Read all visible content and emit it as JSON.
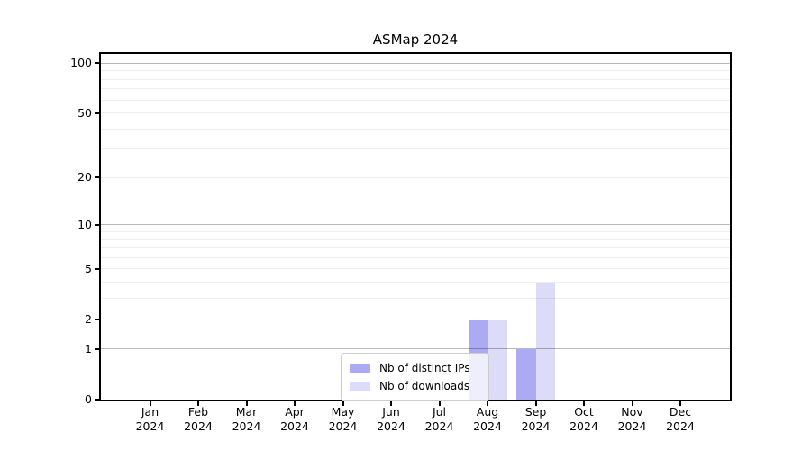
{
  "chart_data": {
    "type": "bar",
    "title": "ASMap 2024",
    "categories": [
      "Jan\n2024",
      "Feb\n2024",
      "Mar\n2024",
      "Apr\n2024",
      "May\n2024",
      "Jun\n2024",
      "Jul\n2024",
      "Aug\n2024",
      "Sep\n2024",
      "Oct\n2024",
      "Nov\n2024",
      "Dec\n2024"
    ],
    "series": [
      {
        "name": "Nb of distinct IPs",
        "color": "#abaaf3",
        "values": [
          0,
          0,
          0,
          0,
          0,
          0,
          0,
          2,
          1,
          0,
          0,
          0
        ]
      },
      {
        "name": "Nb of downloads",
        "color": "#dcdcf8",
        "values": [
          0,
          0,
          0,
          0,
          0,
          0,
          0,
          2,
          4,
          0,
          0,
          0
        ]
      }
    ],
    "xlabel": "",
    "ylabel": "",
    "y_ticks": [
      100,
      50,
      20,
      10,
      5,
      2,
      1,
      0
    ],
    "y_scale": "log10(1+x)",
    "y_max": 113,
    "major_gridlines": [
      1,
      10,
      100
    ],
    "minor_gridlines": [
      2,
      3,
      4,
      5,
      6,
      7,
      8,
      9,
      20,
      30,
      40,
      50,
      60,
      70,
      80,
      90
    ],
    "grid": true,
    "legend": {
      "position": "lower center",
      "entries": [
        "Nb of distinct IPs",
        "Nb of downloads"
      ]
    },
    "bar_grouping": "side-by-side"
  },
  "colors": {
    "background": "#ffffff",
    "axis": "#000000",
    "major_grid_rgba": "rgba(0,0,0,0.28)",
    "minor_grid_rgba": "rgba(0,0,0,0.065)",
    "series_dark": "#abaaf3",
    "series_light": "#dcdcf8"
  }
}
